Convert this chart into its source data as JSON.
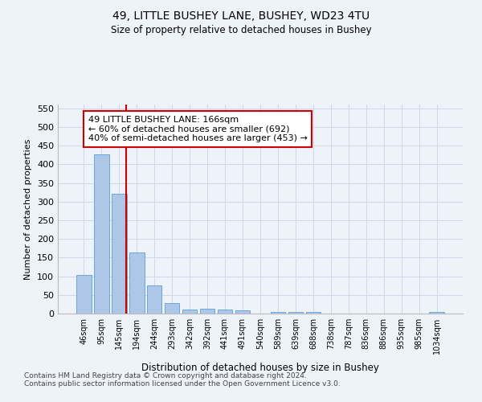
{
  "title1": "49, LITTLE BUSHEY LANE, BUSHEY, WD23 4TU",
  "title2": "Size of property relative to detached houses in Bushey",
  "xlabel": "Distribution of detached houses by size in Bushey",
  "ylabel": "Number of detached properties",
  "bar_labels": [
    "46sqm",
    "95sqm",
    "145sqm",
    "194sqm",
    "244sqm",
    "293sqm",
    "342sqm",
    "392sqm",
    "441sqm",
    "491sqm",
    "540sqm",
    "589sqm",
    "639sqm",
    "688sqm",
    "738sqm",
    "787sqm",
    "836sqm",
    "886sqm",
    "935sqm",
    "985sqm",
    "1034sqm"
  ],
  "bar_values": [
    104,
    427,
    321,
    163,
    75,
    27,
    11,
    13,
    11,
    9,
    0,
    5,
    5,
    5,
    0,
    0,
    0,
    0,
    0,
    0,
    5
  ],
  "bar_color": "#aec6e8",
  "bar_edge_color": "#5a9fd4",
  "vline_color": "#cc0000",
  "annotation_text": "49 LITTLE BUSHEY LANE: 166sqm\n← 60% of detached houses are smaller (692)\n40% of semi-detached houses are larger (453) →",
  "annotation_box_color": "#ffffff",
  "annotation_box_edge_color": "#cc0000",
  "ylim": [
    0,
    560
  ],
  "yticks": [
    0,
    50,
    100,
    150,
    200,
    250,
    300,
    350,
    400,
    450,
    500,
    550
  ],
  "grid_color": "#d0d8e8",
  "footnote": "Contains HM Land Registry data © Crown copyright and database right 2024.\nContains public sector information licensed under the Open Government Licence v3.0.",
  "bg_color": "#eef2f9"
}
